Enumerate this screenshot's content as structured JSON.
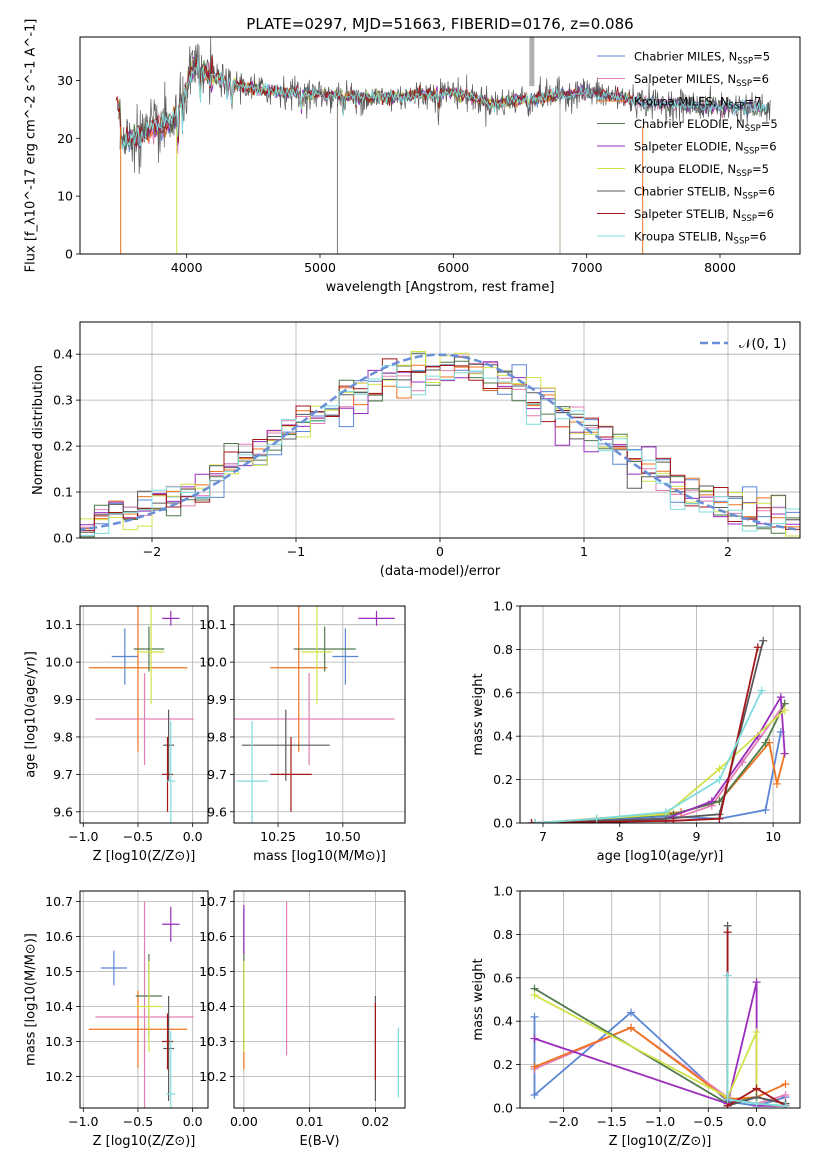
{
  "figure_title": "PLATE=0297, MJD=51663, FIBERID=0176, z=0.086",
  "models": [
    {
      "label": "Chabrier MILES, N",
      "n": "=5",
      "color": "#5b86d6"
    },
    {
      "label": "Salpeter MILES, N",
      "n": "=6",
      "color": "#e37fb4"
    },
    {
      "label": "Kroupa MILES, N",
      "n": "=7",
      "color": "#f0731e"
    },
    {
      "label": "Chabrier ELODIE, N",
      "n": "=5",
      "color": "#4f7a4a"
    },
    {
      "label": "Salpeter ELODIE, N",
      "n": "=6",
      "color": "#9b2dbd"
    },
    {
      "label": "Kroupa ELODIE, N",
      "n": "=5",
      "color": "#d2e24a"
    },
    {
      "label": "Chabrier STELIB, N",
      "n": "=6",
      "color": "#5a5a5a"
    },
    {
      "label": "Salpeter STELIB, N",
      "n": "=6",
      "color": "#a3161a"
    },
    {
      "label": "Kroupa STELIB, N",
      "n": "=6",
      "color": "#7fdcdc"
    }
  ],
  "ssp_sub": "SSP",
  "chart_data": [
    {
      "id": "spectrum",
      "type": "line",
      "xlabel": "wavelength [Angstrom, rest frame]",
      "ylabel": "Flux [f_λ10^-17 erg cm^-2 s^-1 A^-1]",
      "xlim": [
        3200,
        8600
      ],
      "ylim": [
        0,
        37.5
      ],
      "xticks": [
        4000,
        5000,
        6000,
        7000,
        8000
      ],
      "yticks": [
        0,
        10,
        20,
        30
      ],
      "grid": false,
      "legend": "top-right",
      "continuum_anchors": {
        "x": [
          3500,
          3700,
          3900,
          4050,
          4150,
          4500,
          5000,
          5500,
          6000,
          6300,
          6600,
          7000,
          7500,
          8000,
          8350
        ],
        "y": [
          19,
          21,
          23,
          32,
          31,
          28.5,
          27.5,
          27,
          28,
          26,
          27,
          28,
          26,
          25.5,
          25.2
        ]
      },
      "absorption_lines": [
        {
          "x": 3934,
          "depth": 6
        },
        {
          "x": 3969,
          "depth": 5
        },
        {
          "x": 4102,
          "depth": 4
        },
        {
          "x": 4304,
          "depth": 3
        },
        {
          "x": 4340,
          "depth": 4
        },
        {
          "x": 4861,
          "depth": 3
        },
        {
          "x": 5175,
          "depth": 3
        },
        {
          "x": 5270,
          "depth": 2
        },
        {
          "x": 5890,
          "depth": 3
        },
        {
          "x": 6563,
          "depth": 2
        }
      ]
    },
    {
      "id": "residuals",
      "type": "histogram",
      "xlabel": "(data-model)/error",
      "ylabel": "Normed distribution",
      "xlim": [
        -2.5,
        2.5
      ],
      "ylim": [
        0,
        0.47
      ],
      "xticks": [
        -2,
        -1,
        0,
        1,
        2
      ],
      "yticks": [
        0.0,
        0.1,
        0.2,
        0.3,
        0.4
      ],
      "grid": true,
      "legend_label": "𝒩(0, 1)",
      "legend": "top-right",
      "bin_edges_start": -2.6,
      "bin_width": 0.1,
      "bin_count": 52
    },
    {
      "id": "age_vs_Z",
      "type": "errorbar",
      "xlabel": "Z [log10(Z/Z⊙)]",
      "ylabel": "age  [log10(age/yr)]",
      "xlim": [
        -1.03,
        0.14
      ],
      "ylim": [
        9.57,
        10.15
      ],
      "xticks": [
        -1.0,
        -0.5,
        0.0
      ],
      "xticklabels": [
        "−1.0",
        "−0.5",
        "0.0"
      ],
      "yticks": [
        9.6,
        9.7,
        9.8,
        9.9,
        10.0,
        10.1
      ],
      "grid": true,
      "points": [
        {
          "x": -0.62,
          "xerr": 0.12,
          "y": 10.015,
          "yerr": 0.075
        },
        {
          "x": -0.44,
          "xerr": 0.45,
          "y": 9.848,
          "yerr": 0.123
        },
        {
          "x": -0.5,
          "xerr": 0.45,
          "y": 9.985,
          "yerr": 0.225
        },
        {
          "x": -0.4,
          "xerr": 0.14,
          "y": 10.035,
          "yerr": 0.06
        },
        {
          "x": -0.2,
          "xerr": 0.08,
          "y": 10.117,
          "yerr": 0.02
        },
        {
          "x": -0.38,
          "xerr": 0.12,
          "y": 10.027,
          "yerr": 0.14
        },
        {
          "x": -0.22,
          "xerr": 0.05,
          "y": 9.778,
          "yerr": 0.095
        },
        {
          "x": -0.23,
          "xerr": 0.05,
          "y": 9.7,
          "yerr": 0.1
        },
        {
          "x": -0.2,
          "xerr": 0.04,
          "y": 9.682,
          "yerr": 0.16
        }
      ]
    },
    {
      "id": "age_vs_mass",
      "type": "errorbar",
      "xlabel": "mass [log10(M/M⊙)]",
      "ylabel": "",
      "xlim": [
        10.08,
        10.74
      ],
      "ylim": [
        9.57,
        10.15
      ],
      "xticks": [
        10.25,
        10.5
      ],
      "xticklabels": [
        "10.25",
        "10.50"
      ],
      "yticks": [
        9.6,
        9.7,
        9.8,
        9.9,
        10.0,
        10.1
      ],
      "grid": true,
      "points": [
        {
          "x": 10.51,
          "xerr": 0.05,
          "y": 10.015,
          "yerr": 0.075
        },
        {
          "x": 10.37,
          "xerr": 0.33,
          "y": 9.848,
          "yerr": 0.123
        },
        {
          "x": 10.33,
          "xerr": 0.11,
          "y": 9.985,
          "yerr": 0.225
        },
        {
          "x": 10.43,
          "xerr": 0.12,
          "y": 10.035,
          "yerr": 0.06
        },
        {
          "x": 10.63,
          "xerr": 0.07,
          "y": 10.117,
          "yerr": 0.02
        },
        {
          "x": 10.4,
          "xerr": 0.06,
          "y": 10.027,
          "yerr": 0.14
        },
        {
          "x": 10.28,
          "xerr": 0.17,
          "y": 9.778,
          "yerr": 0.095
        },
        {
          "x": 10.3,
          "xerr": 0.08,
          "y": 9.7,
          "yerr": 0.1
        },
        {
          "x": 10.15,
          "xerr": 0.06,
          "y": 9.682,
          "yerr": 0.16
        }
      ]
    },
    {
      "id": "weight_vs_age",
      "type": "line",
      "xlabel": "age  [log10(age/yr)]",
      "ylabel": "mass weight",
      "xlim": [
        6.7,
        10.35
      ],
      "ylim": [
        0,
        1.0
      ],
      "xticks": [
        7,
        8,
        9,
        10
      ],
      "yticks": [
        0.0,
        0.2,
        0.4,
        0.6,
        0.8,
        1.0
      ],
      "grid": true,
      "series": [
        {
          "x": [
            6.85,
            8.6,
            9.3,
            9.9,
            10.1
          ],
          "y": [
            0.0,
            0.03,
            0.02,
            0.06,
            0.42
          ]
        },
        {
          "x": [
            6.9,
            8.7,
            9.2,
            9.6,
            10.15
          ],
          "y": [
            0.0,
            0.02,
            0.08,
            0.28,
            0.55
          ]
        },
        {
          "x": [
            6.9,
            8.8,
            9.3,
            9.95,
            10.05,
            10.15
          ],
          "y": [
            0.0,
            0.05,
            0.1,
            0.37,
            0.18,
            0.32
          ]
        },
        {
          "x": [
            6.9,
            8.7,
            9.3,
            9.9,
            10.15
          ],
          "y": [
            0.0,
            0.04,
            0.1,
            0.37,
            0.55
          ]
        },
        {
          "x": [
            6.85,
            8.6,
            9.2,
            9.8,
            10.1,
            10.15
          ],
          "y": [
            0.0,
            0.02,
            0.1,
            0.4,
            0.58,
            0.32
          ]
        },
        {
          "x": [
            6.9,
            7.7,
            8.6,
            9.3,
            10.15
          ],
          "y": [
            0.0,
            0.02,
            0.04,
            0.25,
            0.52
          ]
        },
        {
          "x": [
            6.9,
            8.6,
            9.3,
            9.87
          ],
          "y": [
            0.0,
            0.02,
            0.04,
            0.84
          ]
        },
        {
          "x": [
            6.85,
            8.7,
            9.3,
            9.8
          ],
          "y": [
            0.0,
            0.01,
            0.02,
            0.81
          ]
        },
        {
          "x": [
            6.9,
            7.7,
            8.6,
            9.3,
            9.85
          ],
          "y": [
            0.0,
            0.02,
            0.05,
            0.2,
            0.61
          ]
        }
      ]
    },
    {
      "id": "mass_vs_Z",
      "type": "errorbar",
      "xlabel": "Z [log10(Z/Z⊙)]",
      "ylabel": "mass [log10(M/M⊙)]",
      "xlim": [
        -1.03,
        0.14
      ],
      "ylim": [
        10.11,
        10.73
      ],
      "xticks": [
        -1.0,
        -0.5,
        0.0
      ],
      "xticklabels": [
        "−1.0",
        "−0.5",
        "0.0"
      ],
      "yticks": [
        10.2,
        10.3,
        10.4,
        10.5,
        10.6,
        10.7
      ],
      "grid": true,
      "points": [
        {
          "x": -0.72,
          "xerr": 0.12,
          "y": 10.51,
          "yerr": 0.05
        },
        {
          "x": -0.44,
          "xerr": 0.45,
          "y": 10.37,
          "yerr": 0.33
        },
        {
          "x": -0.5,
          "xerr": 0.45,
          "y": 10.335,
          "yerr": 0.11
        },
        {
          "x": -0.4,
          "xerr": 0.12,
          "y": 10.43,
          "yerr": 0.12
        },
        {
          "x": -0.2,
          "xerr": 0.08,
          "y": 10.635,
          "yerr": 0.05
        },
        {
          "x": -0.4,
          "xerr": 0.12,
          "y": 10.4,
          "yerr": 0.13
        },
        {
          "x": -0.22,
          "xerr": 0.05,
          "y": 10.28,
          "yerr": 0.15
        },
        {
          "x": -0.23,
          "xerr": 0.05,
          "y": 10.3,
          "yerr": 0.08
        },
        {
          "x": -0.2,
          "xerr": 0.04,
          "y": 10.15,
          "yerr": 0.18
        }
      ]
    },
    {
      "id": "mass_vs_EBV",
      "type": "errorbar",
      "xlabel": "E(B-V)",
      "ylabel": "",
      "xlim": [
        -0.0015,
        0.0245
      ],
      "ylim": [
        10.11,
        10.73
      ],
      "xticks": [
        0.0,
        0.01,
        0.02
      ],
      "xticklabels": [
        "0.00",
        "0.01",
        "0.02"
      ],
      "yticks": [
        10.2,
        10.3,
        10.4,
        10.5,
        10.6,
        10.7
      ],
      "grid": true,
      "points": [
        {
          "x": 0.0,
          "xerr": 0.0,
          "y": 10.43,
          "yerr": 0.1
        },
        {
          "x": 0.0065,
          "xerr": 0.0,
          "y": 10.48,
          "yerr": 0.22
        },
        {
          "x": 0.0,
          "xerr": 0.0,
          "y": 10.27,
          "yerr": 0.05
        },
        {
          "x": 0.0,
          "xerr": 0.0,
          "y": 10.48,
          "yerr": 0.2
        },
        {
          "x": 0.0,
          "xerr": 0.0,
          "y": 10.62,
          "yerr": 0.07
        },
        {
          "x": 0.0,
          "xerr": 0.0,
          "y": 10.4,
          "yerr": 0.13
        },
        {
          "x": 0.02,
          "xerr": 0.0,
          "y": 10.28,
          "yerr": 0.15
        },
        {
          "x": 0.02,
          "xerr": 0.0,
          "y": 10.3,
          "yerr": 0.11
        },
        {
          "x": 0.0235,
          "xerr": 0.0,
          "y": 10.24,
          "yerr": 0.1
        }
      ]
    },
    {
      "id": "weight_vs_Z",
      "type": "line",
      "xlabel": "Z [log10(Z/Z⊙)]",
      "ylabel": "mass weight",
      "xlim": [
        -2.45,
        0.45
      ],
      "ylim": [
        0,
        1.0
      ],
      "xticks": [
        -2.0,
        -1.5,
        -1.0,
        -0.5,
        0.0
      ],
      "xticklabels": [
        "−2.0",
        "−1.5",
        "−1.0",
        "−0.5",
        "0.0"
      ],
      "yticks": [
        0.0,
        0.2,
        0.4,
        0.6,
        0.8,
        1.0
      ],
      "grid": true,
      "series": [
        {
          "x": [
            -2.3,
            -2.3,
            -1.3,
            -0.3,
            0.0,
            0.3
          ],
          "y": [
            0.42,
            0.06,
            0.44,
            0.03,
            0.01,
            0.05
          ]
        },
        {
          "x": [
            -2.3,
            -1.3,
            -0.3,
            0.0,
            0.3
          ],
          "y": [
            0.18,
            0.37,
            0.05,
            0.02,
            0.06
          ]
        },
        {
          "x": [
            -2.3,
            -1.3,
            -0.3,
            0.0,
            0.3
          ],
          "y": [
            0.19,
            0.37,
            0.04,
            0.05,
            0.11
          ]
        },
        {
          "x": [
            -2.3,
            -0.3,
            0.0,
            0.3
          ],
          "y": [
            0.55,
            0.02,
            0.05,
            0.02
          ]
        },
        {
          "x": [
            -2.3,
            -0.3,
            0.0,
            0.0,
            0.3
          ],
          "y": [
            0.32,
            0.02,
            0.58,
            0.01,
            0.01
          ]
        },
        {
          "x": [
            -2.3,
            -0.3,
            0.0,
            0.0,
            0.3
          ],
          "y": [
            0.52,
            0.05,
            0.35,
            0.02,
            0.01
          ]
        },
        {
          "x": [
            -0.3,
            -0.3,
            0.0,
            0.3
          ],
          "y": [
            0.84,
            0.01,
            0.05,
            0.02
          ]
        },
        {
          "x": [
            -0.3,
            -0.3,
            0.0,
            0.3
          ],
          "y": [
            0.81,
            0.01,
            0.09,
            0.01
          ]
        },
        {
          "x": [
            -0.3,
            -0.3,
            0.0,
            0.3
          ],
          "y": [
            0.61,
            0.04,
            0.02,
            0.01
          ]
        }
      ]
    }
  ]
}
